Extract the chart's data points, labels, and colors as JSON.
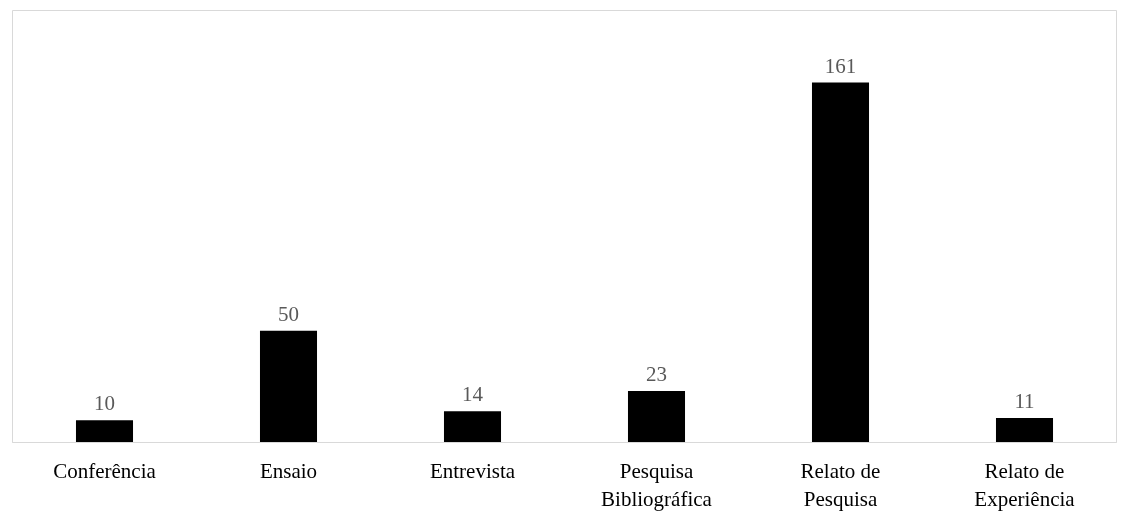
{
  "chart_data": {
    "type": "bar",
    "categories": [
      "Conferência",
      "Ensaio",
      "Entrevista",
      "Pesquisa Bibliográfica",
      "Relato de Pesquisa",
      "Relato de Experiência"
    ],
    "values": [
      10,
      50,
      14,
      23,
      161,
      11
    ],
    "color": "#000000",
    "data_labels": true
  }
}
